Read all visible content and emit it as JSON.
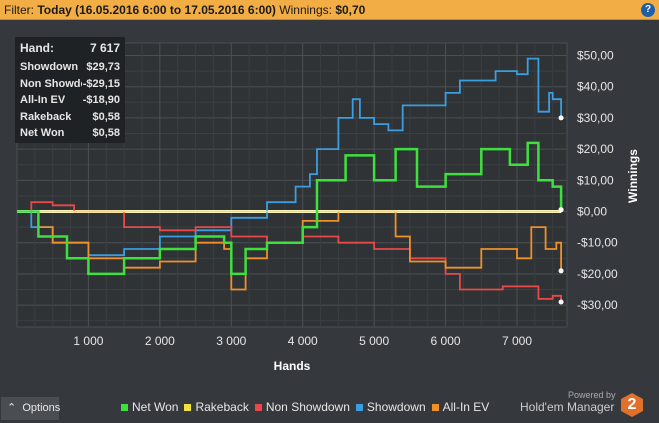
{
  "filter": {
    "label": "Filter:",
    "value": "Today (16.05.2016 6:00 to 17.05.2016 6:00)",
    "winnings_label": "Winnings:",
    "winnings_value": "$0,70"
  },
  "help_icon": "?",
  "tooltip": {
    "rows": [
      {
        "label": "Hand:",
        "value": "7 617"
      },
      {
        "label": "Showdown",
        "value": "$29,73"
      },
      {
        "label": "Non Showdown",
        "value": "-$29,15"
      },
      {
        "label": "All-In EV",
        "value": "-$18,90"
      },
      {
        "label": "Rakeback",
        "value": "$0,58"
      },
      {
        "label": "Net Won",
        "value": "$0,58"
      }
    ]
  },
  "options_label": "Options",
  "powered_by": "Powered by",
  "brand": "Hold'em Manager",
  "brand_logo": "2",
  "chart_data": {
    "type": "line",
    "xlabel": "Hands",
    "ylabel": "Winnings",
    "xlim": [
      0,
      7700
    ],
    "ylim": [
      -37,
      54
    ],
    "xticks": [
      1000,
      2000,
      3000,
      4000,
      5000,
      6000,
      7000
    ],
    "xtick_labels": [
      "1 000",
      "2 000",
      "3 000",
      "4 000",
      "5 000",
      "6 000",
      "7 000"
    ],
    "yticks": [
      50,
      40,
      30,
      20,
      10,
      0,
      -10,
      -20,
      -30
    ],
    "ytick_labels": [
      "$50,00",
      "$40,00",
      "$30,00",
      "$20,00",
      "$10,00",
      "$0,00",
      "-$10,00",
      "-$20,00",
      "-$30,00"
    ],
    "grid": true,
    "legend": "bottom",
    "series": [
      {
        "name": "Showdown",
        "color": "#3a9ee0",
        "x": [
          0,
          200,
          500,
          1000,
          1500,
          2000,
          2500,
          3000,
          3500,
          3900,
          4100,
          4200,
          4500,
          4700,
          4800,
          5000,
          5200,
          5400,
          6000,
          6200,
          6700,
          7000,
          7150,
          7300,
          7450,
          7500,
          7617
        ],
        "y": [
          0,
          -5,
          -10,
          -14,
          -12,
          -8,
          -6,
          -2,
          3,
          8,
          12,
          20,
          30,
          36,
          30,
          28,
          26,
          34,
          38,
          42,
          45,
          44,
          49,
          32,
          38,
          36,
          30
        ]
      },
      {
        "name": "Non Showdown",
        "color": "#e84a4a",
        "x": [
          0,
          200,
          500,
          800,
          1500,
          2000,
          2500,
          3000,
          3500,
          4000,
          4500,
          5000,
          5500,
          6000,
          6200,
          6800,
          7300,
          7500,
          7617
        ],
        "y": [
          0,
          3,
          2,
          0,
          -5,
          -6,
          -5,
          -8,
          -10,
          -8,
          -10,
          -12,
          -15,
          -20,
          -25,
          -24,
          -28,
          -27,
          -29
        ]
      },
      {
        "name": "All-In EV",
        "color": "#f0902a",
        "x": [
          0,
          300,
          500,
          1000,
          1500,
          2000,
          2500,
          2900,
          3000,
          3200,
          3500,
          4000,
          4500,
          5000,
          5300,
          5500,
          6000,
          6500,
          7000,
          7200,
          7400,
          7550,
          7617
        ],
        "y": [
          0,
          -5,
          -10,
          -15,
          -18,
          -16,
          -10,
          -12,
          -25,
          -15,
          -10,
          -3,
          0,
          0,
          -8,
          -16,
          -18,
          -12,
          -15,
          -5,
          -12,
          -10,
          -19
        ]
      },
      {
        "name": "Rakeback",
        "color": "#f0e040",
        "x": [
          0,
          7617
        ],
        "y": [
          0,
          0.58
        ]
      },
      {
        "name": "Net Won",
        "color": "#3ee03e",
        "x": [
          0,
          300,
          700,
          1000,
          1500,
          2000,
          2500,
          2900,
          3000,
          3200,
          3500,
          4000,
          4200,
          4600,
          5000,
          5300,
          5600,
          6000,
          6500,
          6900,
          7150,
          7300,
          7500,
          7617
        ],
        "y": [
          0,
          -8,
          -15,
          -20,
          -15,
          -12,
          -8,
          -10,
          -20,
          -12,
          -10,
          -5,
          10,
          18,
          10,
          20,
          8,
          12,
          20,
          15,
          22,
          10,
          8,
          0.6
        ]
      }
    ],
    "legend_order": [
      "Net Won",
      "Rakeback",
      "Non Showdown",
      "Showdown",
      "All-In EV"
    ]
  }
}
